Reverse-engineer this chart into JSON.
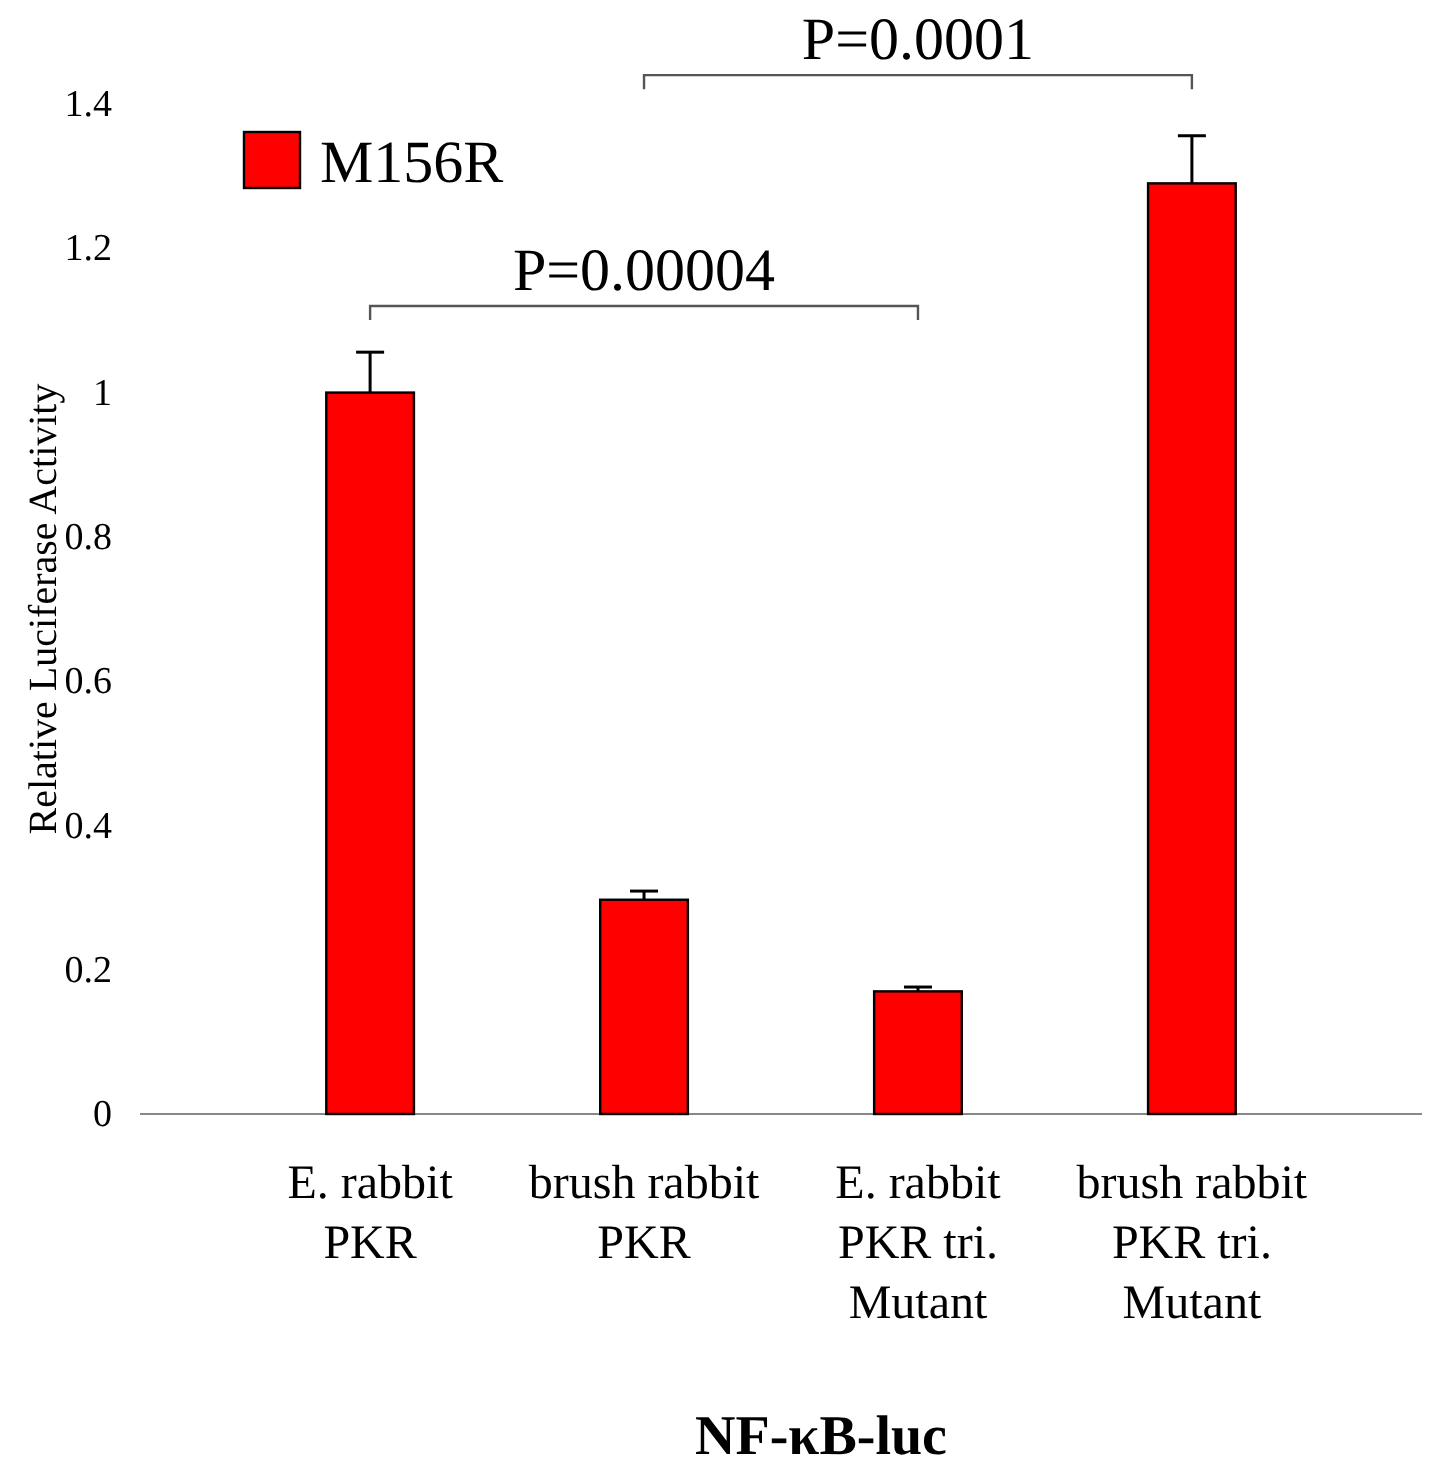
{
  "chart_data": {
    "type": "bar",
    "categories": [
      "E. rabbit PKR",
      "brush rabbit PKR",
      "E. rabbit PKR tri. Mutant",
      "brush rabbit PKR tri. Mutant"
    ],
    "series": [
      {
        "name": "M156R",
        "color": "#ff0000",
        "values": [
          1.0,
          0.297,
          0.17,
          1.29
        ],
        "errors": [
          0.056,
          0.012,
          0.006,
          0.066
        ]
      }
    ],
    "ylabel": "Relative  Luciferase Activity",
    "xlabel": "NF-κB-luc",
    "ylim": [
      0,
      1.4
    ],
    "yticks": [
      0,
      0.2,
      0.4,
      0.6,
      0.8,
      1,
      1.2,
      1.4
    ],
    "annotations": [
      "P=0.00004",
      "P=0.0001"
    ],
    "legend": "top left",
    "grid": false
  }
}
